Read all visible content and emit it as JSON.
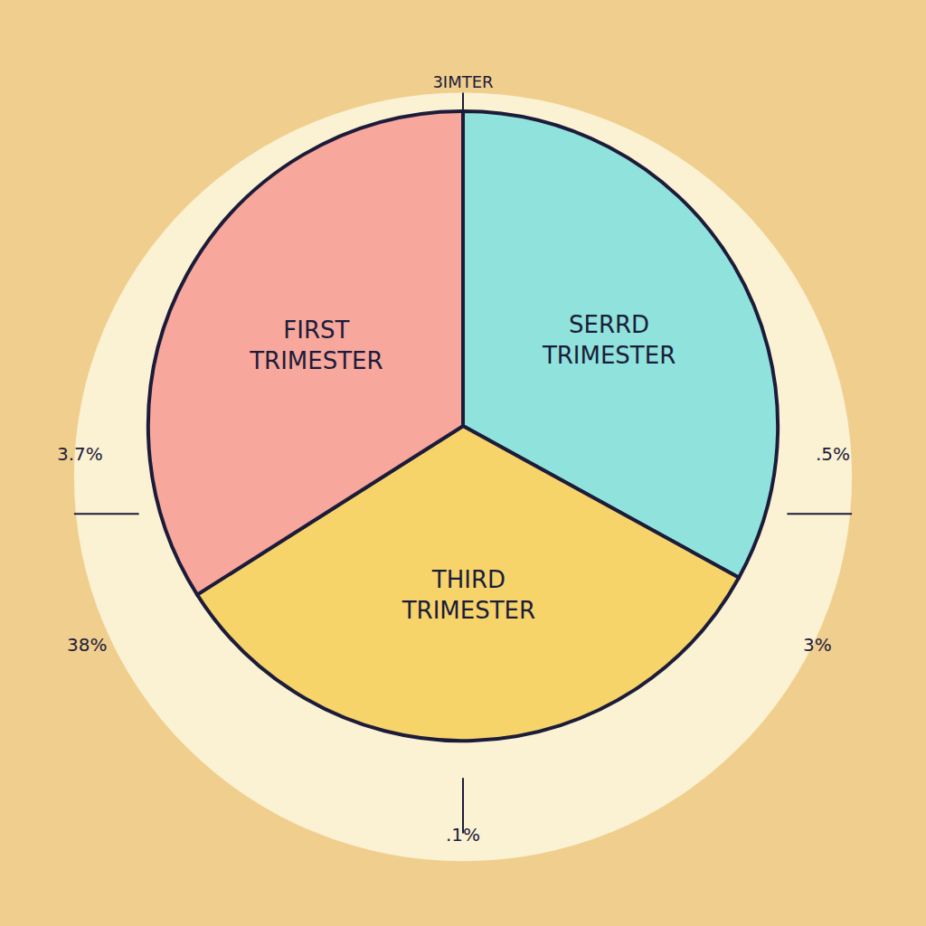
{
  "chart_data": {
    "type": "pie",
    "title": "3IMTER",
    "categories": [
      "SERRD TRIMESTER",
      "THIRD TRIMESTER",
      "FIRST TRIMESTER"
    ],
    "values": [
      33,
      33,
      34
    ],
    "colors": [
      "#8fe3dc",
      "#f6d46a",
      "#f8a79c"
    ],
    "annotations": [
      "3.7%",
      ".5%",
      "38%",
      "3%",
      ".1%"
    ]
  }
}
